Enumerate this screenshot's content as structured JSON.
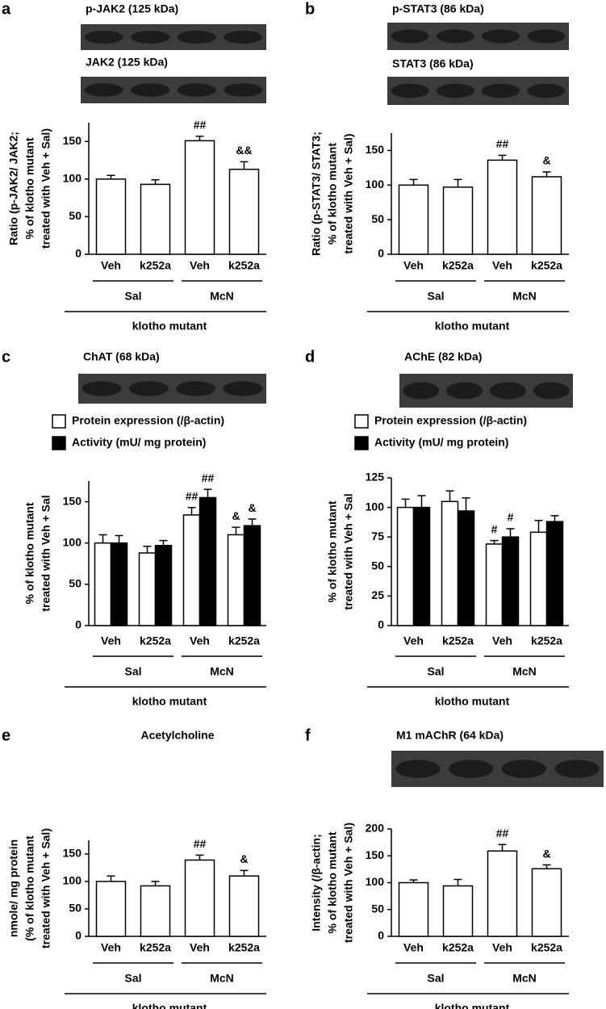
{
  "chart_data": [
    {
      "type": "bar",
      "label": "a",
      "blot_labels": [
        "p-JAK2 (125 kDa)",
        "JAK2 (125 kDa)"
      ],
      "ylabel": [
        "Ratio (p-JAK2/ JAK2;",
        "% of klotho mutant",
        "treated with Veh + Sal)"
      ],
      "categories": [
        "Veh",
        "k252a",
        "Veh",
        "k252a"
      ],
      "groups": [
        "Sal",
        "McN"
      ],
      "group_title": "klotho mutant",
      "series": [
        {
          "color": "#ffffff",
          "values": [
            100,
            93,
            151,
            113
          ],
          "errors": [
            5,
            6,
            6,
            10
          ],
          "annotations": [
            null,
            null,
            "##",
            "&&"
          ]
        }
      ],
      "ylim": [
        0,
        175
      ],
      "yticks": [
        0,
        50,
        100,
        150
      ]
    },
    {
      "type": "bar",
      "label": "b",
      "blot_labels": [
        "p-STAT3 (86 kDa)",
        "STAT3 (86 kDa)"
      ],
      "ylabel": [
        "Ratio (p-STAT3/ STAT3;",
        "% of klotho mutant",
        "treated with Veh + Sal)"
      ],
      "categories": [
        "Veh",
        "k252a",
        "Veh",
        "k252a"
      ],
      "groups": [
        "Sal",
        "McN"
      ],
      "group_title": "klotho mutant",
      "series": [
        {
          "color": "#ffffff",
          "values": [
            100,
            97,
            136,
            112
          ],
          "errors": [
            8,
            11,
            7,
            7
          ],
          "annotations": [
            null,
            null,
            "##",
            "&"
          ]
        }
      ],
      "ylim": [
        0,
        175
      ],
      "yticks": [
        0,
        50,
        100,
        150
      ]
    },
    {
      "type": "bar",
      "label": "c",
      "blot_labels": [
        "ChAT (68 kDa)"
      ],
      "ylabel": [
        "% of klotho mutant",
        "treated with Veh + Sal"
      ],
      "categories": [
        "Veh",
        "k252a",
        "Veh",
        "k252a"
      ],
      "groups": [
        "Sal",
        "McN"
      ],
      "group_title": "klotho mutant",
      "series": [
        {
          "name": "Protein expression (/β-actin)",
          "color": "#ffffff",
          "values": [
            100,
            88,
            134,
            110
          ],
          "errors": [
            10,
            8,
            9,
            9
          ],
          "annotations": [
            null,
            null,
            "##",
            "&"
          ]
        },
        {
          "name": "Activity (mU/ mg protein)",
          "color": "#000000",
          "values": [
            100,
            97,
            155,
            121
          ],
          "errors": [
            9,
            6,
            10,
            8
          ],
          "annotations": [
            null,
            null,
            "##",
            "&"
          ]
        }
      ],
      "ylim": [
        0,
        175
      ],
      "yticks": [
        0,
        50,
        100,
        150
      ]
    },
    {
      "type": "bar",
      "label": "d",
      "blot_labels": [
        "AChE (82 kDa)"
      ],
      "ylabel": [
        "% of klotho mutant",
        "treated with Veh + Sal"
      ],
      "categories": [
        "Veh",
        "k252a",
        "Veh",
        "k252a"
      ],
      "groups": [
        "Sal",
        "McN"
      ],
      "group_title": "klotho mutant",
      "series": [
        {
          "name": "Protein expression (/β-actin)",
          "color": "#ffffff",
          "values": [
            100,
            105,
            69,
            79
          ],
          "errors": [
            7,
            9,
            3,
            10
          ],
          "annotations": [
            null,
            null,
            "#",
            null
          ]
        },
        {
          "name": "Activity (mU/ mg protein)",
          "color": "#000000",
          "values": [
            100,
            97,
            75,
            88
          ],
          "errors": [
            10,
            11,
            7,
            5
          ],
          "annotations": [
            null,
            null,
            "#",
            null
          ]
        }
      ],
      "ylim": [
        0,
        125
      ],
      "yticks": [
        0,
        25,
        50,
        75,
        100,
        125
      ]
    },
    {
      "type": "bar",
      "label": "e",
      "title": "Acetylcholine",
      "ylabel": [
        "nmole/ mg protein",
        "(% of klotho mutant",
        "treated with Veh + Sal)"
      ],
      "categories": [
        "Veh",
        "k252a",
        "Veh",
        "k252a"
      ],
      "groups": [
        "Sal",
        "McN"
      ],
      "group_title": "klotho mutant",
      "series": [
        {
          "color": "#ffffff",
          "values": [
            100,
            92,
            139,
            110
          ],
          "errors": [
            10,
            8,
            9,
            10
          ],
          "annotations": [
            null,
            null,
            "##",
            "&"
          ]
        }
      ],
      "ylim": [
        0,
        175
      ],
      "yticks": [
        0,
        50,
        100,
        150
      ]
    },
    {
      "type": "bar",
      "label": "f",
      "blot_labels": [
        "M1 mAChR (64 kDa)"
      ],
      "ylabel": [
        "Intensity (/β-actin;",
        "% of klotho mutant",
        "treated with Veh + Sal)"
      ],
      "categories": [
        "Veh",
        "k252a",
        "Veh",
        "k252a"
      ],
      "groups": [
        "Sal",
        "McN"
      ],
      "group_title": "klotho mutant",
      "series": [
        {
          "color": "#ffffff",
          "values": [
            100,
            94,
            159,
            126
          ],
          "errors": [
            5,
            12,
            12,
            7
          ],
          "annotations": [
            null,
            null,
            "##",
            "&"
          ]
        }
      ],
      "ylim": [
        0,
        200
      ],
      "yticks": [
        0,
        50,
        100,
        150,
        200
      ]
    }
  ]
}
